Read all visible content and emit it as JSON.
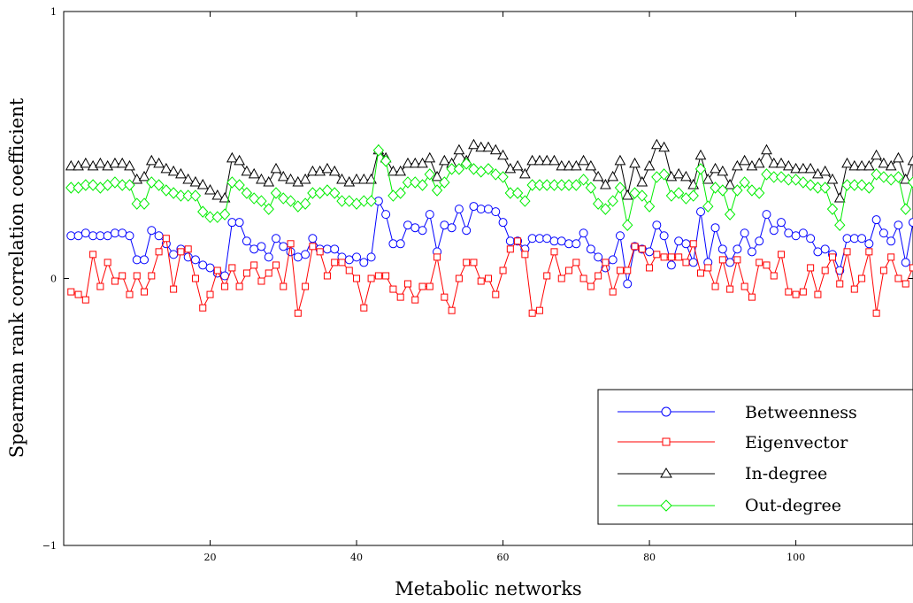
{
  "chart_data": {
    "type": "line",
    "title": "",
    "xlabel": "Metabolic networks",
    "ylabel": "Spearman rank correlation coefficient",
    "xlim": [
      0,
      116
    ],
    "ylim": [
      -1,
      1
    ],
    "x_ticks": [
      20,
      40,
      60,
      80,
      100
    ],
    "y_ticks": [
      -1,
      0,
      1
    ],
    "x_tick_labels": [
      "20",
      "40",
      "60",
      "80",
      "100"
    ],
    "y_tick_labels": [
      "−1",
      "0",
      "1"
    ],
    "grid": false,
    "legend_position": "bottom-right",
    "series": [
      {
        "name": "Betweenness",
        "color": "#0000ff",
        "marker": "circle",
        "values": [
          0.16,
          0.16,
          0.17,
          0.16,
          0.16,
          0.16,
          0.17,
          0.17,
          0.16,
          0.07,
          0.07,
          0.18,
          0.16,
          0.13,
          0.09,
          0.11,
          0.08,
          0.07,
          0.05,
          0.04,
          0.02,
          0.01,
          0.21,
          0.21,
          0.14,
          0.11,
          0.12,
          0.08,
          0.15,
          0.12,
          0.1,
          0.08,
          0.09,
          0.15,
          0.11,
          0.11,
          0.11,
          0.08,
          0.07,
          0.08,
          0.06,
          0.08,
          0.29,
          0.24,
          0.13,
          0.13,
          0.2,
          0.19,
          0.18,
          0.24,
          0.1,
          0.2,
          0.19,
          0.26,
          0.18,
          0.27,
          0.26,
          0.26,
          0.25,
          0.21,
          0.14,
          0.14,
          0.11,
          0.15,
          0.15,
          0.15,
          0.14,
          0.14,
          0.13,
          0.13,
          0.17,
          0.11,
          0.08,
          0.04,
          0.07,
          0.16,
          -0.02,
          0.12,
          0.11,
          0.1,
          0.2,
          0.16,
          0.05,
          0.14,
          0.13,
          0.06,
          0.25,
          0.06,
          0.19,
          0.11,
          0.06,
          0.11,
          0.17,
          0.1,
          0.14,
          0.24,
          0.18,
          0.21,
          0.17,
          0.16,
          0.17,
          0.15,
          0.1,
          0.11,
          0.09,
          0.03,
          0.15,
          0.15,
          0.15,
          0.13,
          0.22,
          0.17,
          0.14,
          0.2,
          0.06,
          0.21
        ]
      },
      {
        "name": "Eigenvector",
        "color": "#ff0000",
        "marker": "square",
        "values": [
          -0.05,
          -0.06,
          -0.08,
          0.09,
          -0.03,
          0.06,
          -0.01,
          0.01,
          -0.06,
          0.01,
          -0.05,
          0.01,
          0.1,
          0.15,
          -0.04,
          0.1,
          0.11,
          0.0,
          -0.11,
          -0.06,
          0.03,
          -0.03,
          0.04,
          -0.03,
          0.02,
          0.05,
          -0.01,
          0.02,
          0.05,
          -0.03,
          0.13,
          -0.13,
          -0.03,
          0.12,
          0.1,
          0.01,
          0.06,
          0.06,
          0.03,
          0.0,
          -0.11,
          0.0,
          0.01,
          0.01,
          -0.04,
          -0.07,
          -0.02,
          -0.08,
          -0.03,
          -0.03,
          0.08,
          -0.07,
          -0.12,
          -0.0,
          0.06,
          0.06,
          -0.01,
          -0.0,
          -0.06,
          0.03,
          0.11,
          0.14,
          0.09,
          -0.13,
          -0.12,
          0.01,
          0.1,
          0.0,
          0.03,
          0.06,
          0.0,
          -0.03,
          0.01,
          0.06,
          -0.05,
          0.03,
          0.03,
          0.12,
          0.11,
          0.04,
          0.09,
          0.08,
          0.08,
          0.08,
          0.06,
          0.13,
          0.02,
          0.04,
          -0.03,
          0.07,
          -0.04,
          0.07,
          -0.03,
          -0.07,
          0.06,
          0.05,
          0.01,
          0.09,
          -0.05,
          -0.06,
          -0.05,
          0.04,
          -0.06,
          0.03,
          0.08,
          -0.02,
          0.1,
          -0.04,
          0.0,
          0.1,
          -0.13,
          0.03,
          0.08,
          -0.0,
          -0.02,
          0.04
        ]
      },
      {
        "name": "In-degree",
        "color": "#000000",
        "marker": "triangle",
        "values": [
          0.42,
          0.42,
          0.43,
          0.42,
          0.43,
          0.42,
          0.43,
          0.43,
          0.42,
          0.37,
          0.38,
          0.44,
          0.43,
          0.41,
          0.4,
          0.39,
          0.37,
          0.36,
          0.35,
          0.33,
          0.31,
          0.3,
          0.45,
          0.44,
          0.4,
          0.39,
          0.37,
          0.36,
          0.41,
          0.38,
          0.37,
          0.36,
          0.37,
          0.4,
          0.4,
          0.41,
          0.4,
          0.37,
          0.36,
          0.37,
          0.37,
          0.37,
          0.48,
          0.45,
          0.4,
          0.4,
          0.43,
          0.43,
          0.43,
          0.45,
          0.38,
          0.44,
          0.43,
          0.48,
          0.44,
          0.5,
          0.49,
          0.49,
          0.48,
          0.46,
          0.41,
          0.42,
          0.39,
          0.44,
          0.44,
          0.44,
          0.44,
          0.42,
          0.42,
          0.42,
          0.44,
          0.42,
          0.38,
          0.35,
          0.38,
          0.44,
          0.31,
          0.43,
          0.36,
          0.42,
          0.5,
          0.49,
          0.38,
          0.39,
          0.38,
          0.35,
          0.46,
          0.37,
          0.41,
          0.4,
          0.35,
          0.42,
          0.44,
          0.42,
          0.43,
          0.48,
          0.43,
          0.43,
          0.42,
          0.41,
          0.41,
          0.41,
          0.39,
          0.4,
          0.37,
          0.3,
          0.43,
          0.42,
          0.42,
          0.42,
          0.46,
          0.43,
          0.42,
          0.45,
          0.37,
          0.44
        ]
      },
      {
        "name": "Out-degree",
        "color": "#00ee00",
        "marker": "diamond",
        "values": [
          0.34,
          0.34,
          0.35,
          0.35,
          0.34,
          0.35,
          0.36,
          0.35,
          0.35,
          0.28,
          0.28,
          0.36,
          0.35,
          0.33,
          0.32,
          0.31,
          0.31,
          0.31,
          0.25,
          0.23,
          0.23,
          0.24,
          0.36,
          0.35,
          0.32,
          0.3,
          0.29,
          0.26,
          0.32,
          0.3,
          0.29,
          0.27,
          0.28,
          0.32,
          0.32,
          0.33,
          0.32,
          0.29,
          0.29,
          0.28,
          0.29,
          0.29,
          0.48,
          0.44,
          0.31,
          0.32,
          0.36,
          0.36,
          0.35,
          0.39,
          0.33,
          0.36,
          0.41,
          0.41,
          0.43,
          0.41,
          0.4,
          0.41,
          0.39,
          0.38,
          0.32,
          0.32,
          0.29,
          0.35,
          0.35,
          0.35,
          0.35,
          0.35,
          0.35,
          0.35,
          0.37,
          0.34,
          0.28,
          0.26,
          0.29,
          0.34,
          0.2,
          0.32,
          0.31,
          0.27,
          0.38,
          0.39,
          0.31,
          0.32,
          0.3,
          0.31,
          0.41,
          0.27,
          0.34,
          0.33,
          0.24,
          0.33,
          0.36,
          0.33,
          0.32,
          0.39,
          0.38,
          0.38,
          0.37,
          0.37,
          0.36,
          0.35,
          0.34,
          0.34,
          0.26,
          0.2,
          0.35,
          0.35,
          0.35,
          0.34,
          0.39,
          0.38,
          0.37,
          0.38,
          0.26,
          0.36
        ]
      }
    ]
  }
}
